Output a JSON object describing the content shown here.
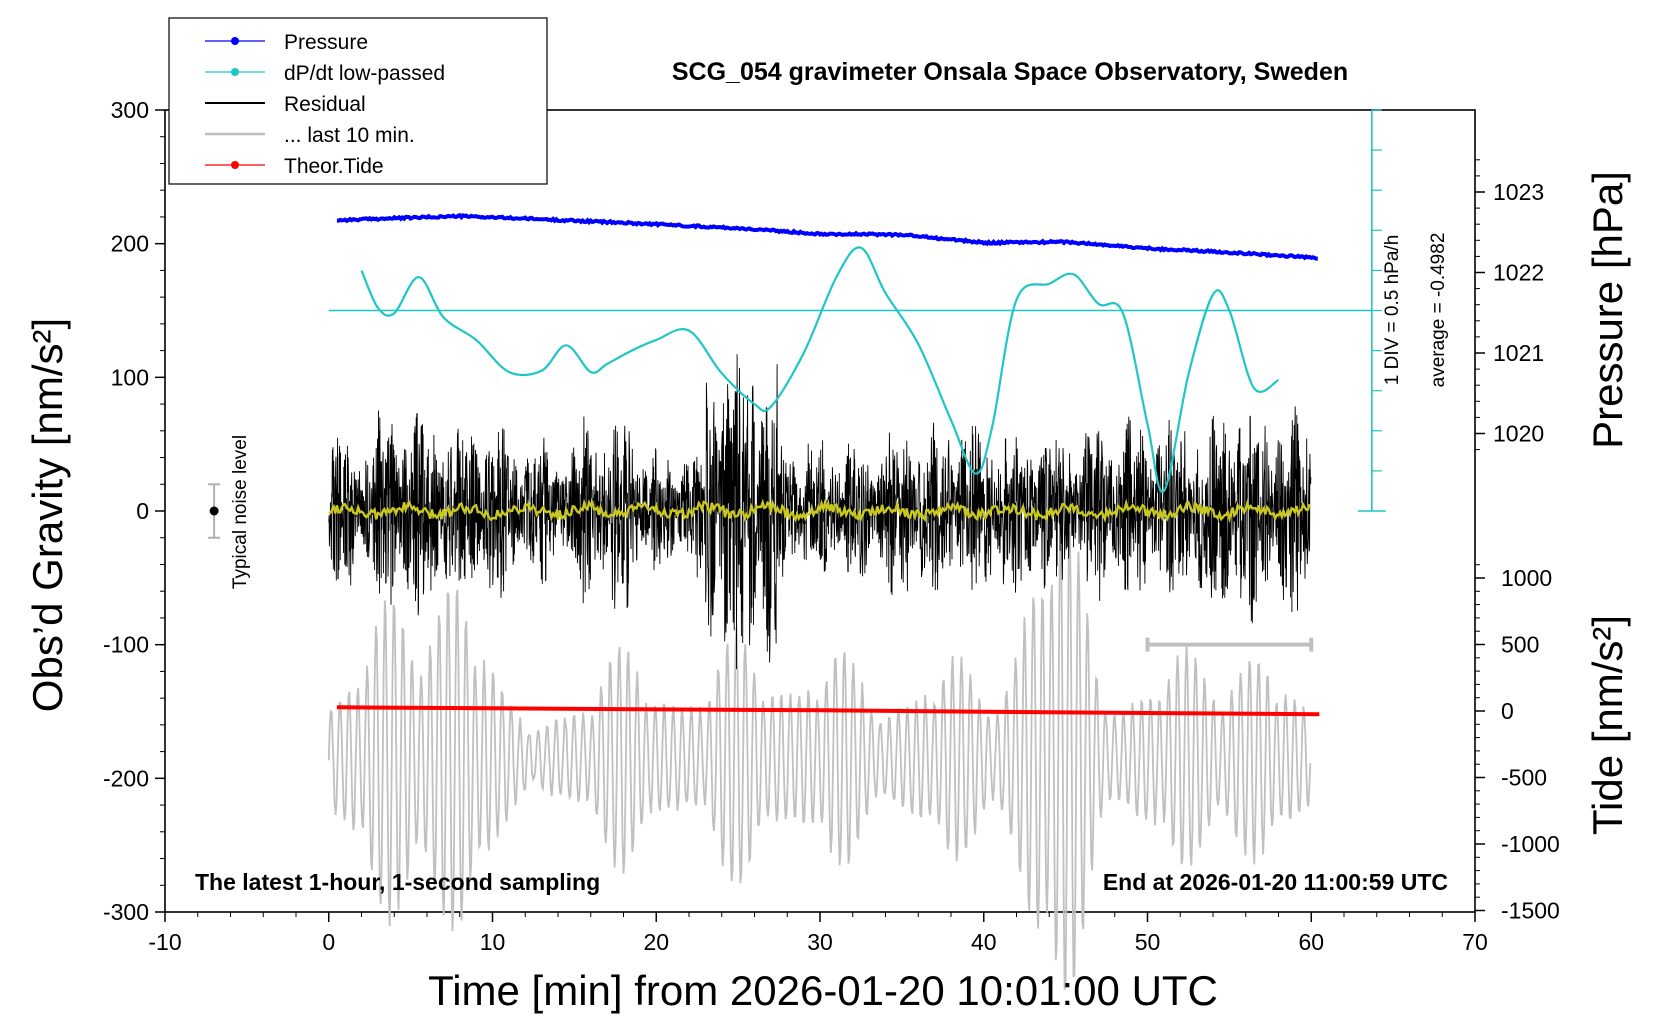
{
  "chart_data": {
    "type": "line",
    "title": "SCG_054 gravimeter Onsala Space Observatory, Sweden",
    "xlabel": "Time [min] from 2026-01-20 10:01:00 UTC",
    "ylabel_left": "Obs’d Gravity [nm/s²]",
    "ylabel_right_pressure": "Pressure [hPa]",
    "ylabel_right_tide": "Tide [nm/s²]",
    "xlim": [
      -10,
      70
    ],
    "ylim_left": [
      -300,
      300
    ],
    "x_ticks": [
      "-10",
      "0",
      "10",
      "20",
      "30",
      "40",
      "50",
      "60",
      "70"
    ],
    "y_ticks_left": [
      "300",
      "200",
      "100",
      "0",
      "-100",
      "-200",
      "-300"
    ],
    "y_ticks_pressure": [
      "1023",
      "1022",
      "1021",
      "1020"
    ],
    "y_ticks_tide": [
      "1000",
      "500",
      "0",
      "-500",
      "-1000",
      "-1500"
    ],
    "grid": false,
    "legend_position": "top-left",
    "legend": [
      {
        "label": "Pressure",
        "color": "#0000ff",
        "marker": true
      },
      {
        "label": "dP/dt low-passed",
        "color": "#1fc6c6",
        "marker": true
      },
      {
        "label": "Residual",
        "color": "#000000",
        "marker": false
      },
      {
        "label": "... last 10 min.",
        "color": "#c0c0c0",
        "marker": false
      },
      {
        "label": "Theor.Tide",
        "color": "#ff0000",
        "marker": true
      }
    ],
    "series": [
      {
        "name": "Pressure",
        "color": "#0000ff",
        "unit": "hPa",
        "x": [
          0.5,
          5,
          8,
          12,
          20,
          25,
          30,
          35,
          40,
          45,
          50,
          55,
          60.5
        ],
        "y": [
          1022.65,
          1022.68,
          1022.7,
          1022.67,
          1022.6,
          1022.55,
          1022.48,
          1022.47,
          1022.37,
          1022.38,
          1022.3,
          1022.25,
          1022.18
        ]
      },
      {
        "name": "dP/dt low-passed",
        "color": "#1fc6c6",
        "x": [
          2,
          3,
          4,
          5.5,
          7,
          9,
          11,
          13,
          14.5,
          16,
          17,
          18.5,
          20,
          22,
          24,
          26,
          27,
          29,
          31,
          32.5,
          34,
          36,
          38,
          39.5,
          40.5,
          42,
          44,
          45.5,
          47,
          48.5,
          50,
          51,
          52.5,
          54,
          55,
          56.5,
          58
        ],
        "y": [
          180,
          152,
          148,
          175,
          145,
          128,
          104,
          105,
          124,
          104,
          110,
          120,
          128,
          135,
          103,
          80,
          78,
          118,
          175,
          197,
          163,
          125,
          68,
          28,
          62,
          158,
          170,
          177,
          155,
          148,
          65,
          15,
          102,
          162,
          150,
          92,
          98
        ]
      },
      {
        "name": "Residual",
        "color": "#000000",
        "x_range": [
          0,
          60
        ],
        "envelope_nm_s2": [
          -130,
          140
        ],
        "segments": [
          {
            "x": [
              0,
              3
            ],
            "amp": 55
          },
          {
            "x": [
              3,
              7
            ],
            "amp": 75
          },
          {
            "x": [
              7,
              11
            ],
            "amp": 65
          },
          {
            "x": [
              11,
              15
            ],
            "amp": 50
          },
          {
            "x": [
              15,
              19
            ],
            "amp": 70
          },
          {
            "x": [
              19,
              23
            ],
            "amp": 45
          },
          {
            "x": [
              23,
              27.5
            ],
            "amp": 120
          },
          {
            "x": [
              27.5,
              34
            ],
            "amp": 50
          },
          {
            "x": [
              34,
              40.5
            ],
            "amp": 65
          },
          {
            "x": [
              40.5,
              47
            ],
            "amp": 60
          },
          {
            "x": [
              47,
              53
            ],
            "amp": 65
          },
          {
            "x": [
              53,
              60
            ],
            "amp": 75
          }
        ]
      },
      {
        "name": "Residual low-passed",
        "color": "#c8c820",
        "x": [
          0,
          10,
          20,
          30,
          40,
          50,
          60
        ],
        "y": [
          0,
          0,
          0,
          0,
          0,
          0,
          0
        ]
      },
      {
        "name": "... last 10 min.",
        "color": "#c0c0c0",
        "x_range": [
          0,
          60
        ],
        "center_nm_s2": -185,
        "peaks": [
          {
            "x": 3.5,
            "amp": 80
          },
          {
            "x": 8,
            "amp": 90
          },
          {
            "x": 18,
            "amp": 50
          },
          {
            "x": 25,
            "amp": 60
          },
          {
            "x": 31,
            "amp": 50
          },
          {
            "x": 38,
            "amp": 45
          },
          {
            "x": 44.5,
            "amp": 150
          },
          {
            "x": 52,
            "amp": 50
          },
          {
            "x": 57,
            "amp": 45
          }
        ]
      },
      {
        "name": "Theor.Tide",
        "color": "#ff0000",
        "unit": "nm/s²",
        "x": [
          0.5,
          10,
          20,
          30,
          40,
          50,
          60.5
        ],
        "y": [
          28,
          20,
          12,
          5,
          -5,
          -15,
          -25
        ]
      }
    ],
    "annotations": {
      "noise_label": "Typical noise level",
      "noise_bar": {
        "x": -7,
        "center": 0,
        "half_width": 20
      },
      "dpdt_scale_1": "1 DIV = 0.5 hPa/h",
      "dpdt_scale_2": "average = -0.4982",
      "ten_minute_bar": {
        "from": 50,
        "to": 60,
        "y": -100
      },
      "footer_left": "The latest 1-hour, 1-second sampling",
      "footer_right": "End at 2026-01-20 11:00:59 UTC"
    }
  }
}
